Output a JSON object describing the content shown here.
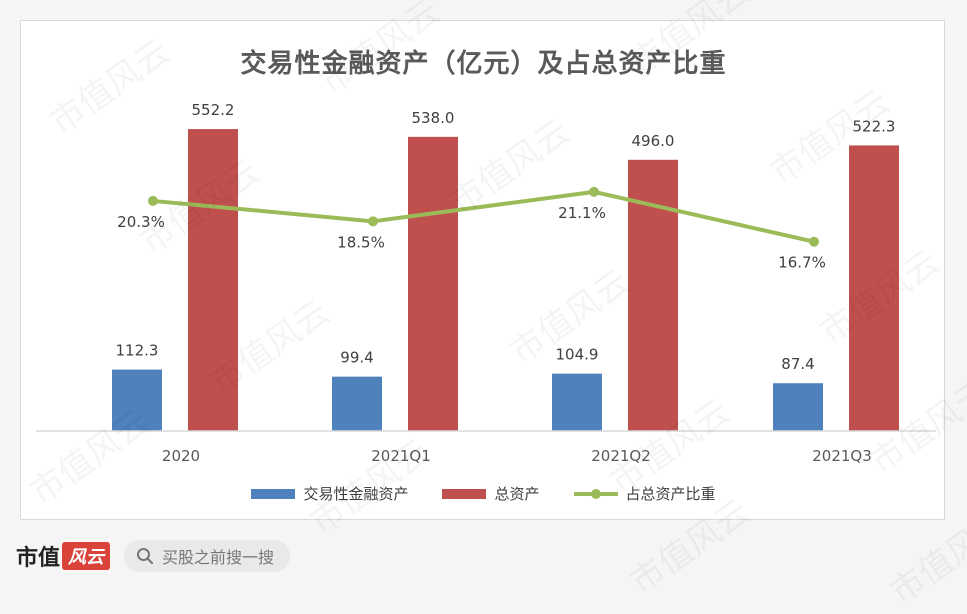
{
  "chart_data": {
    "type": "bar",
    "title": "交易性金融资产（亿元）及占总资产比重",
    "categories": [
      "2020",
      "2021Q1",
      "2021Q2",
      "2021Q3"
    ],
    "series": [
      {
        "name": "交易性金融资产",
        "type": "bar",
        "color": "#4f81bd",
        "values": [
          112.3,
          99.4,
          104.9,
          87.4
        ],
        "labels": [
          "112.3",
          "99.4",
          "104.9",
          "87.4"
        ]
      },
      {
        "name": "总资产",
        "type": "bar",
        "color": "#c0504d",
        "values": [
          552.2,
          538.0,
          496.0,
          522.3
        ],
        "labels": [
          "552.2",
          "538.0",
          "496.0",
          "522.3"
        ]
      },
      {
        "name": "占总资产比重",
        "type": "line",
        "color": "#9bbb59",
        "values": [
          20.3,
          18.5,
          21.1,
          16.7
        ],
        "labels": [
          "20.3%",
          "18.5%",
          "21.1%",
          "16.7%"
        ]
      }
    ],
    "bar_ylim": [
      0,
      620
    ],
    "line_ylim": [
      0,
      30
    ],
    "grid": false,
    "legend_position": "bottom"
  },
  "footer": {
    "brand_text": "市值",
    "brand_mark": "风云",
    "search_icon": "search-icon",
    "search_placeholder": "买股之前搜一搜"
  },
  "watermark": "市值风云"
}
